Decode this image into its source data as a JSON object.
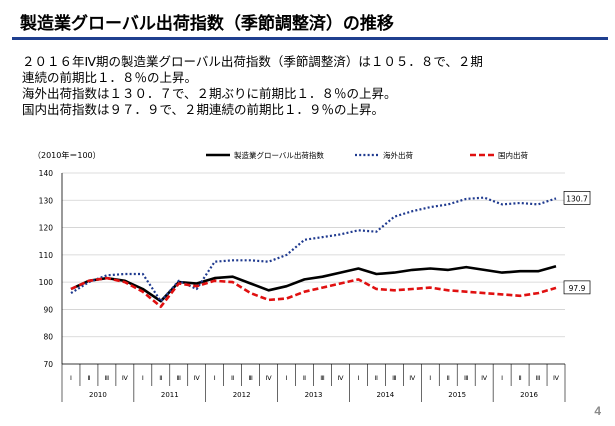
{
  "title": "製造業グローバル出荷指数（季節調整済）の推移",
  "description": [
    "２０１６年Ⅳ期の製造業グローバル出荷指数（季節調整済）は１０５．８で、２期",
    "連続の前期比１．８％の上昇。",
    "海外出荷指数は１３０．７で、２期ぶりに前期比１．８％の上昇。",
    "国内出荷指数は９７．９で、２期連続の前期比１．９％の上昇。"
  ],
  "page_number": "4",
  "chart_data": {
    "type": "line",
    "unit_label": "（2010年＝100）",
    "ylim": [
      70,
      140
    ],
    "y_ticks": [
      70,
      80,
      90,
      100,
      110,
      120,
      130,
      140
    ],
    "quarters": [
      "Ⅰ",
      "Ⅱ",
      "Ⅲ",
      "Ⅳ",
      "Ⅰ",
      "Ⅱ",
      "Ⅲ",
      "Ⅳ",
      "Ⅰ",
      "Ⅱ",
      "Ⅲ",
      "Ⅳ",
      "Ⅰ",
      "Ⅱ",
      "Ⅲ",
      "Ⅳ",
      "Ⅰ",
      "Ⅱ",
      "Ⅲ",
      "Ⅳ",
      "Ⅰ",
      "Ⅱ",
      "Ⅲ",
      "Ⅳ",
      "Ⅰ",
      "Ⅱ",
      "Ⅲ",
      "Ⅳ"
    ],
    "years": [
      "2010",
      "2011",
      "2012",
      "2013",
      "2014",
      "2015",
      "2016"
    ],
    "series": [
      {
        "name": "製造業グローバル出荷指数",
        "color": "#000000",
        "dash": "solid",
        "values": [
          97.5,
          100.5,
          101.5,
          100.5,
          97.5,
          93.0,
          100.0,
          99.5,
          101.5,
          102.0,
          99.5,
          97.0,
          98.5,
          101.0,
          102.0,
          103.5,
          105.0,
          103.0,
          103.5,
          104.5,
          105.0,
          104.5,
          105.5,
          104.5,
          103.5,
          104.0,
          104.0,
          105.8
        ]
      },
      {
        "name": "海外出荷",
        "color": "#1f3a8f",
        "dash": "dotted",
        "values": [
          96.0,
          100.0,
          102.5,
          103.0,
          103.0,
          93.0,
          100.5,
          97.5,
          107.5,
          108.0,
          108.0,
          107.5,
          110.0,
          115.5,
          116.5,
          117.5,
          119.0,
          118.5,
          124.0,
          126.0,
          127.5,
          128.5,
          130.5,
          131.0,
          128.5,
          129.0,
          128.5,
          130.7
        ]
      },
      {
        "name": "国内出荷",
        "color": "#e01010",
        "dash": "dashed",
        "values": [
          97.5,
          100.5,
          101.5,
          100.0,
          96.5,
          91.0,
          99.5,
          98.5,
          100.5,
          100.0,
          96.0,
          93.5,
          94.0,
          96.5,
          98.0,
          99.5,
          101.0,
          97.5,
          97.0,
          97.5,
          98.0,
          97.0,
          96.5,
          96.0,
          95.5,
          95.0,
          96.0,
          97.9
        ]
      }
    ],
    "end_labels": [
      "130.7",
      "97.9"
    ],
    "legend": "top"
  }
}
